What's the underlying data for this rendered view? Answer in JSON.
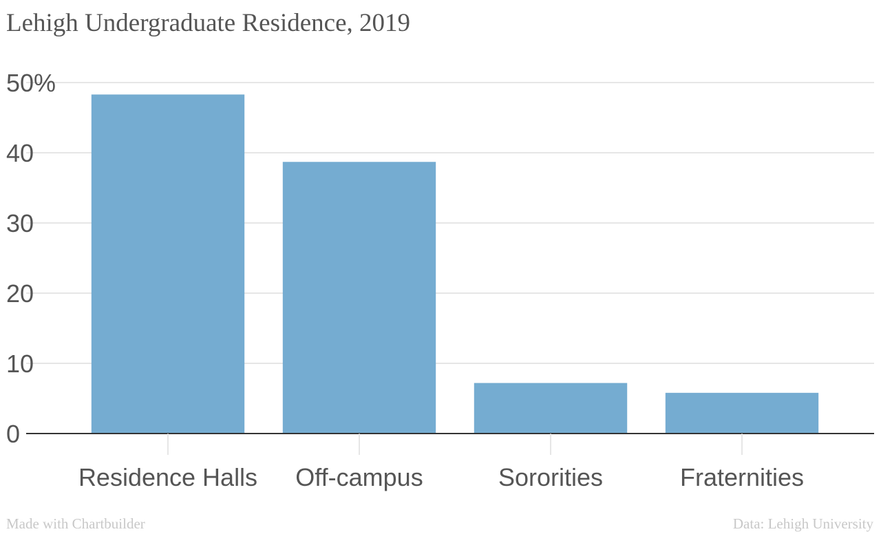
{
  "chart_data": {
    "type": "bar",
    "title": "Lehigh Undergraduate Residence, 2019",
    "categories": [
      "Residence Halls",
      "Off-campus",
      "Sororities",
      "Fraternities"
    ],
    "values": [
      48.3,
      38.7,
      7.2,
      5.8
    ],
    "ylim": [
      0,
      50
    ],
    "yticks": [
      0,
      10,
      20,
      30,
      40,
      50
    ],
    "ytick_labels": [
      "0",
      "10",
      "20",
      "30",
      "40",
      "50%"
    ],
    "xlabel": "",
    "ylabel": "",
    "grid": true,
    "bar_color": "#75acd1",
    "grid_color": "#dddddd",
    "axis_color": "#333333",
    "text_color": "#555555"
  },
  "footer": {
    "credit": "Made with Chartbuilder",
    "source": "Data: Lehigh University"
  }
}
